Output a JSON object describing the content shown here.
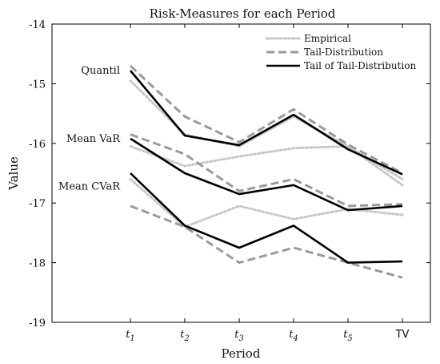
{
  "chart_data": {
    "type": "line",
    "title": "Risk-Measures for each Period",
    "xlabel": "Period",
    "ylabel": "Value",
    "categories": [
      {
        "base": "t",
        "sub": "1"
      },
      {
        "base": "t",
        "sub": "2"
      },
      {
        "base": "t",
        "sub": "3"
      },
      {
        "base": "t",
        "sub": "4"
      },
      {
        "base": "t",
        "sub": "5"
      },
      {
        "base": "TV",
        "sub": ""
      }
    ],
    "ylim": [
      -19,
      -14
    ],
    "yticks": [
      "-14",
      "-15",
      "-16",
      "-17",
      "-18",
      "-19"
    ],
    "legend": {
      "position": "top-right",
      "entries": [
        {
          "label": "Empirical",
          "color": "#c8c8c8",
          "style": "dotted"
        },
        {
          "label": "Tail-Distribution",
          "color": "#9a9a9a",
          "style": "dashed"
        },
        {
          "label": "Tail of Tail-Distribution",
          "color": "#000000",
          "style": "solid"
        }
      ]
    },
    "annotations": [
      {
        "text": "Quantil",
        "y": -14.78
      },
      {
        "text": "Mean VaR",
        "y": -15.92
      },
      {
        "text": "Mean CVaR",
        "y": -16.72
      }
    ],
    "series": [
      {
        "name": "Empirical",
        "group": "Quantil",
        "color": "#c8c8c8",
        "style": "dotted",
        "values": [
          -14.95,
          -15.85,
          -16.05,
          -15.55,
          -16.05,
          -16.7
        ]
      },
      {
        "name": "Tail-Distribution",
        "group": "Quantil",
        "color": "#9a9a9a",
        "style": "dashed",
        "values": [
          -14.7,
          -15.55,
          -15.98,
          -15.43,
          -16.02,
          -16.5
        ]
      },
      {
        "name": "Tail of Tail-Distribution",
        "group": "Quantil",
        "color": "#000000",
        "style": "solid",
        "values": [
          -14.78,
          -15.87,
          -16.03,
          -15.52,
          -16.1,
          -16.52
        ]
      },
      {
        "name": "Empirical",
        "group": "Mean VaR",
        "color": "#c8c8c8",
        "style": "dotted",
        "values": [
          -16.05,
          -16.38,
          -16.22,
          -16.08,
          -16.05,
          -16.6
        ]
      },
      {
        "name": "Tail-Distribution",
        "group": "Mean VaR",
        "color": "#9a9a9a",
        "style": "dashed",
        "values": [
          -15.85,
          -16.18,
          -16.8,
          -16.6,
          -17.05,
          -17.02
        ]
      },
      {
        "name": "Tail of Tail-Distribution",
        "group": "Mean VaR",
        "color": "#000000",
        "style": "solid",
        "values": [
          -15.92,
          -16.5,
          -16.85,
          -16.7,
          -17.12,
          -17.05
        ]
      },
      {
        "name": "Empirical",
        "group": "Mean CVaR",
        "color": "#c8c8c8",
        "style": "dotted",
        "values": [
          -16.6,
          -17.4,
          -17.05,
          -17.27,
          -17.1,
          -17.2
        ]
      },
      {
        "name": "Tail-Distribution",
        "group": "Mean CVaR",
        "color": "#9a9a9a",
        "style": "dashed",
        "values": [
          -17.05,
          -17.4,
          -18.0,
          -17.75,
          -18.0,
          -18.25
        ]
      },
      {
        "name": "Tail of Tail-Distribution",
        "group": "Mean CVaR",
        "color": "#000000",
        "style": "solid",
        "values": [
          -16.5,
          -17.38,
          -17.75,
          -17.38,
          -18.0,
          -17.98
        ]
      }
    ],
    "grid": false
  }
}
